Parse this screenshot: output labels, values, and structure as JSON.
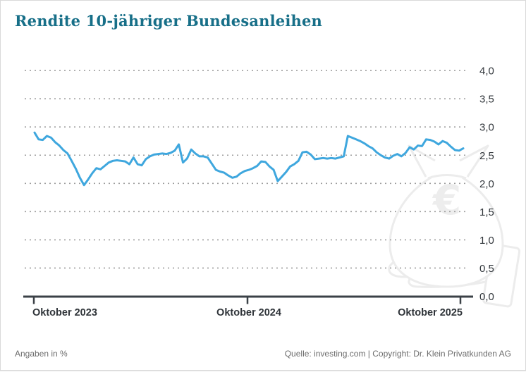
{
  "page": {
    "title": "Rendite 10-jähriger Bundesanleihen"
  },
  "footer": {
    "left_note": "Angaben in %",
    "source": "Quelle: investing.com | Copyright: Dr. Klein Privatkunden AG"
  },
  "colors": {
    "title": "#176f88",
    "line": "#3fa7de",
    "grid_dots": "#9e9e9e",
    "axis": "#3b4147",
    "x_tick_label": "#2f3439",
    "y_tick_label": "#32373c",
    "footer_text": "#6d6d6d",
    "watermark": "#ececec",
    "card_border": "#d9d9d9"
  },
  "watermark": {
    "name": "money-bag-with-euro-on-hand",
    "symbol": "€"
  },
  "chart_data": {
    "type": "line",
    "title": "Rendite 10-jähriger Bundesanleihen",
    "xlabel": "",
    "ylabel": "",
    "unit_note": "Angaben in %",
    "ylim": [
      0.0,
      4.0
    ],
    "y_tick_step": 0.5,
    "y_ticks": [
      "4,0",
      "3,5",
      "3,0",
      "2,5",
      "2,0",
      "1,5",
      "1,0",
      "0,5",
      "0,0"
    ],
    "x_tick_labels": [
      "Oktober 2023",
      "Oktober 2024",
      "Oktober 2025"
    ],
    "x_range": [
      "Oktober 2023",
      "Oktober 2025"
    ],
    "interval": "weekly",
    "grid": "dotted horizontal gridlines",
    "legend": "none",
    "series_name": "Rendite 10-jähriger Bundesanleihen (%)",
    "values": [
      2.9,
      2.78,
      2.77,
      2.84,
      2.81,
      2.73,
      2.67,
      2.59,
      2.53,
      2.4,
      2.26,
      2.1,
      1.97,
      2.07,
      2.18,
      2.27,
      2.25,
      2.31,
      2.37,
      2.4,
      2.41,
      2.4,
      2.39,
      2.34,
      2.46,
      2.34,
      2.32,
      2.43,
      2.48,
      2.51,
      2.52,
      2.53,
      2.52,
      2.54,
      2.58,
      2.69,
      2.37,
      2.44,
      2.6,
      2.53,
      2.48,
      2.48,
      2.46,
      2.35,
      2.24,
      2.21,
      2.19,
      2.14,
      2.1,
      2.12,
      2.18,
      2.22,
      2.24,
      2.27,
      2.31,
      2.39,
      2.38,
      2.3,
      2.24,
      2.04,
      2.12,
      2.2,
      2.3,
      2.34,
      2.4,
      2.55,
      2.56,
      2.51,
      2.43,
      2.44,
      2.45,
      2.44,
      2.45,
      2.44,
      2.46,
      2.48,
      2.84,
      2.81,
      2.78,
      2.75,
      2.71,
      2.66,
      2.62,
      2.55,
      2.5,
      2.46,
      2.44,
      2.49,
      2.52,
      2.48,
      2.54,
      2.64,
      2.6,
      2.67,
      2.66,
      2.78,
      2.77,
      2.74,
      2.69,
      2.75,
      2.72,
      2.65,
      2.59,
      2.58,
      2.62
    ]
  }
}
